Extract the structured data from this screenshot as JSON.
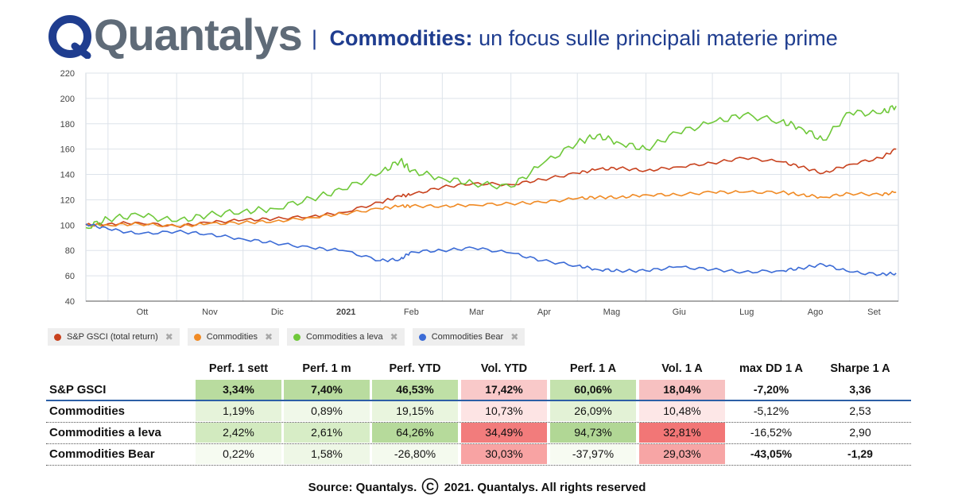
{
  "header": {
    "logo_text": "Quantalys",
    "separator": "|",
    "title_strong": "Commodities:",
    "title_rest": "un focus sulle principali materie prime"
  },
  "colors": {
    "brand": "#1f3d8f",
    "logo_gray": "#5f6b78",
    "sp_gsci": "#c8421e",
    "commodities": "#f08a24",
    "commodities_leva": "#6fc83a",
    "commodities_bear": "#3b6bd6",
    "green_strong": "#b9dc9f",
    "green_light": "#eaf5e0",
    "red_strong": "#f27c7c",
    "red_light": "#fde1e1"
  },
  "chart_data": {
    "type": "line",
    "x": [
      "2020-09-21",
      "2020-10-01",
      "2020-10-15",
      "2020-11-01",
      "2020-11-15",
      "2020-12-01",
      "2020-12-15",
      "2021-01-01",
      "2021-01-15",
      "2021-02-01",
      "2021-02-10",
      "2021-02-15",
      "2021-03-01",
      "2021-03-15",
      "2021-04-01",
      "2021-04-15",
      "2021-05-01",
      "2021-05-10",
      "2021-05-20",
      "2021-06-01",
      "2021-06-15",
      "2021-07-01",
      "2021-07-15",
      "2021-08-01",
      "2021-08-10",
      "2021-08-20",
      "2021-09-01",
      "2021-09-15",
      "2021-09-22"
    ],
    "x_tick_labels": [
      "Ott",
      "Nov",
      "Dic",
      "2021",
      "Feb",
      "Mar",
      "Apr",
      "Mag",
      "Giu",
      "Lug",
      "Ago",
      "Set"
    ],
    "x_tick_dates": [
      "2020-10-01",
      "2020-11-01",
      "2020-12-01",
      "2021-01-01",
      "2021-02-01",
      "2021-03-01",
      "2021-04-01",
      "2021-05-01",
      "2021-06-01",
      "2021-07-01",
      "2021-08-01",
      "2021-09-01"
    ],
    "x_range": [
      "2020-09-21",
      "2021-09-23"
    ],
    "ylim": [
      40,
      220
    ],
    "y_ticks": [
      40,
      60,
      80,
      100,
      120,
      140,
      160,
      180,
      200,
      220
    ],
    "grid": true,
    "legend_position": "bottom-left",
    "series": [
      {
        "name": "S&P GSCI (total return)",
        "color": "#c8421e",
        "values": [
          100,
          101,
          102,
          99,
          102,
          104,
          105,
          107,
          110,
          118,
          123,
          124,
          130,
          133,
          132,
          136,
          141,
          144,
          145,
          143,
          146,
          149,
          153,
          150,
          146,
          141,
          148,
          153,
          160
        ]
      },
      {
        "name": "Commodities",
        "color": "#f08a24",
        "values": [
          100,
          100,
          101,
          99,
          101,
          102,
          103,
          106,
          109,
          113,
          115,
          115,
          115,
          116,
          117,
          118,
          121,
          122,
          122,
          124,
          124,
          126,
          126,
          126,
          124,
          122,
          125,
          124,
          126
        ]
      },
      {
        "name": "Commodities a leva",
        "color": "#6fc83a",
        "values": [
          98,
          105,
          108,
          103,
          108,
          111,
          113,
          121,
          128,
          141,
          151,
          143,
          137,
          133,
          130,
          148,
          165,
          171,
          165,
          160,
          173,
          181,
          187,
          182,
          177,
          167,
          189,
          188,
          194
        ]
      },
      {
        "name": "Commodities Bear",
        "color": "#3b6bd6",
        "values": [
          101,
          97,
          93,
          95,
          93,
          89,
          86,
          82,
          80,
          72,
          73,
          79,
          80,
          82,
          78,
          72,
          68,
          65,
          64,
          64,
          67,
          65,
          63,
          64,
          66,
          69,
          63,
          61,
          62
        ]
      }
    ]
  },
  "table": {
    "columns": [
      "Perf. 1 sett",
      "Perf. 1 m",
      "Perf. YTD",
      "Vol. YTD",
      "Perf. 1 A",
      "Vol. 1 A",
      "max DD 1 A",
      "Sharpe 1 A"
    ],
    "rows": [
      {
        "name": "S&P GSCI",
        "values": [
          "3,34%",
          "7,40%",
          "46,53%",
          "17,42%",
          "60,06%",
          "18,04%",
          "-7,20%",
          "3,36"
        ]
      },
      {
        "name": "Commodities",
        "values": [
          "1,19%",
          "0,89%",
          "19,15%",
          "10,73%",
          "26,09%",
          "10,48%",
          "-5,12%",
          "2,53"
        ]
      },
      {
        "name": "Commodities a leva",
        "values": [
          "2,42%",
          "2,61%",
          "64,26%",
          "34,49%",
          "94,73%",
          "32,81%",
          "-16,52%",
          "2,90"
        ]
      },
      {
        "name": "Commodities Bear",
        "values": [
          "0,22%",
          "1,58%",
          "-26,80%",
          "30,03%",
          "-37,97%",
          "29,03%",
          "-43,05%",
          "-1,29"
        ]
      }
    ],
    "cell_colors": [
      [
        "#b9dc9f",
        "#b9dc9f",
        "#bfe0a6",
        "#f9c9c9",
        "#c4e2ad",
        "#f7c1c1",
        "",
        ""
      ],
      [
        "#e6f3da",
        "#f0f8e9",
        "#e9f5de",
        "#fde4e4",
        "#e3f2d6",
        "#fde7e7",
        "",
        ""
      ],
      [
        "#d2eabf",
        "#d7edc6",
        "#b6da9b",
        "#f27c7c",
        "#b1d795",
        "#f27676",
        "",
        ""
      ],
      [
        "#f6fbf1",
        "#eef7e6",
        "#f4faee",
        "#f8a3a3",
        "#f7fbf2",
        "#f7a5a5",
        "",
        ""
      ]
    ],
    "bold_cells": [
      [],
      [],
      [],
      [
        6,
        7
      ]
    ]
  },
  "source": {
    "prefix": "Source: Quantalys.",
    "copyright_symbol": "C",
    "suffix": "2021. Quantalys. All rights reserved"
  }
}
